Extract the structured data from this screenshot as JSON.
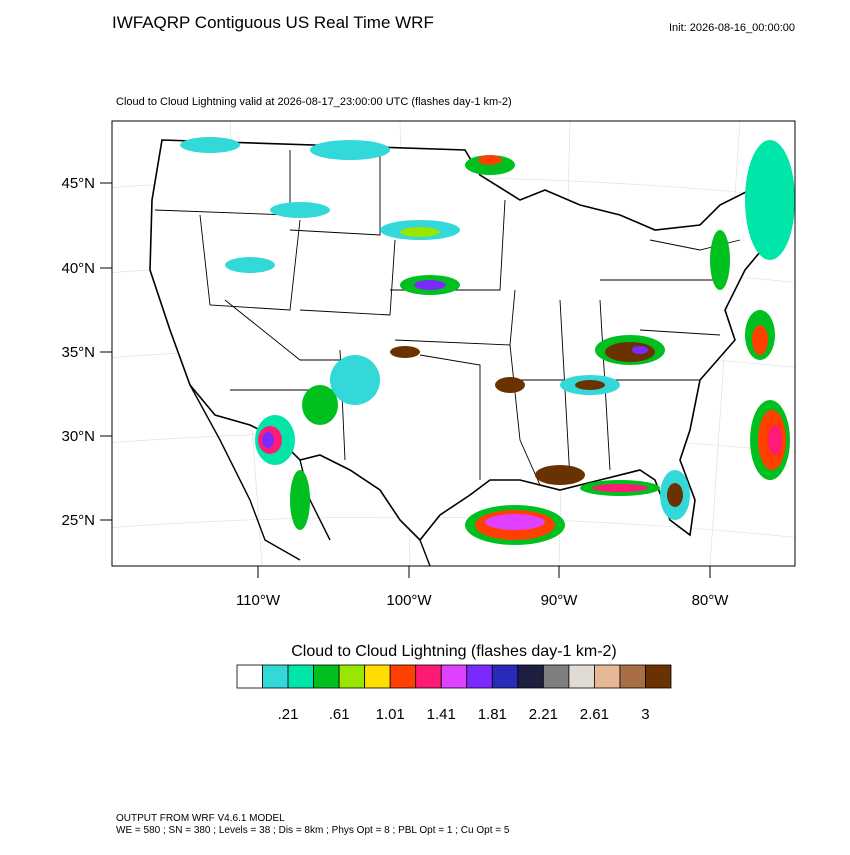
{
  "header": {
    "title": "IWFAQRP Contiguous US Real Time WRF",
    "init": "Init: 2026-08-16_00:00:00"
  },
  "map": {
    "subtitle": "Cloud to Cloud Lightning valid at 2026-08-17_23:00:00 UTC   (flashes day-1 km-2)",
    "lat_labels": [
      "45°N",
      "40°N",
      "35°N",
      "30°N",
      "25°N"
    ],
    "lon_labels": [
      "110°W",
      "100°W",
      "90°W",
      "80°W"
    ]
  },
  "colorbar": {
    "title": "Cloud to Cloud Lightning  (flashes day-1 km-2)",
    "colors": [
      "#ffffff",
      "#33d9d9",
      "#00e6a8",
      "#00c020",
      "#99e600",
      "#ffdd00",
      "#ff4000",
      "#ff1a75",
      "#e040ff",
      "#7a2aff",
      "#2a2ab8",
      "#1e1e40",
      "#7f7f7f",
      "#e0dcd4",
      "#e6b896",
      "#a86e46",
      "#6a3200"
    ],
    "labels": [
      ".21",
      ".61",
      "1.01",
      "1.41",
      "1.81",
      "2.21",
      "2.61",
      "3"
    ]
  },
  "footer": {
    "line1": "OUTPUT FROM WRF V4.6.1 MODEL",
    "line2": "WE = 580 ; SN = 380 ; Levels = 38 ; Dis = 8km ; Phys Opt = 8 ; PBL Opt = 1 ; Cu Opt = 5"
  }
}
